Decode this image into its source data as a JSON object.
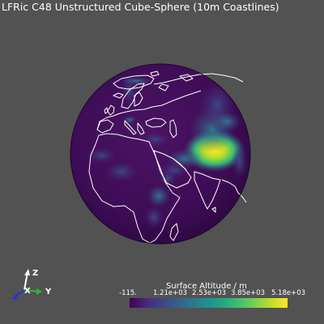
{
  "title": "LFRic C48 Unstructured Cube-Sphere (10m Coastlines)",
  "colors": {
    "background": "#525252",
    "globe_base": "#3f0a57",
    "coastline": "#ffffff",
    "colormap": "viridis"
  },
  "orientation_axes": {
    "z_label": "Z",
    "y_label": "Y",
    "x_label": "X",
    "z_color": "#ffffff",
    "y_color": "#2fb82f",
    "x_color": "#2233dd"
  },
  "colorbar": {
    "title": "Surface Altitude / m",
    "ticks": [
      "-115.",
      "1.21e+03",
      "2.53e+03",
      "3.85e+03",
      "5.18e+03"
    ],
    "min": -115,
    "max": 5180
  }
}
